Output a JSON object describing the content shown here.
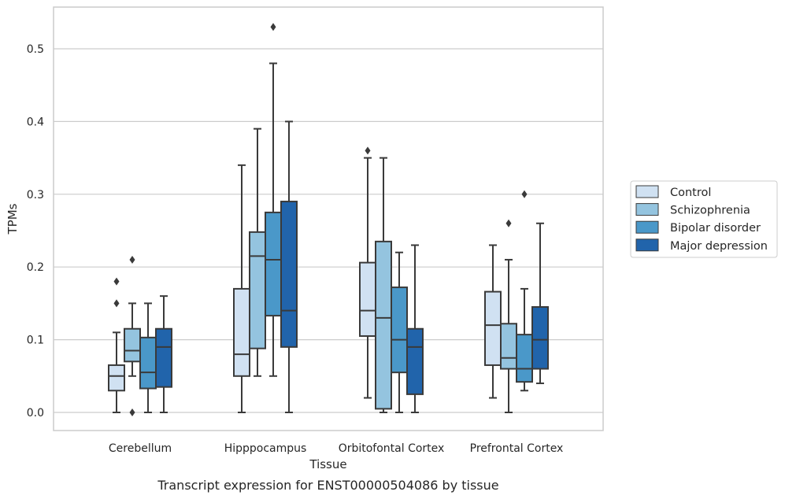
{
  "chart_data": {
    "type": "boxplot",
    "title": "",
    "caption": "Transcript expression for ENST00000504086 by tissue",
    "xlabel": "Tissue",
    "ylabel": "TPMs",
    "ylim": [
      -0.025,
      0.56
    ],
    "yticks": [
      0.0,
      0.1,
      0.2,
      0.3,
      0.4,
      0.5
    ],
    "ytick_labels": [
      "0.0",
      "0.1",
      "0.2",
      "0.3",
      "0.4",
      "0.5"
    ],
    "grid": "horizontal",
    "legend_position": "right",
    "categories": [
      "Cerebellum",
      "Hipppocampus",
      "Orbitofontal Cortex",
      "Prefrontal Cortex"
    ],
    "series": [
      {
        "name": "Control",
        "color": "#d0e1f2",
        "boxes": [
          {
            "whisker_low": 0.0,
            "q1": 0.03,
            "median": 0.05,
            "q3": 0.065,
            "whisker_high": 0.11,
            "outliers": [
              0.15,
              0.18
            ]
          },
          {
            "whisker_low": 0.0,
            "q1": 0.05,
            "median": 0.08,
            "q3": 0.17,
            "whisker_high": 0.34,
            "outliers": []
          },
          {
            "whisker_low": 0.02,
            "q1": 0.105,
            "median": 0.14,
            "q3": 0.206,
            "whisker_high": 0.35,
            "outliers": [
              0.36
            ]
          },
          {
            "whisker_low": 0.02,
            "q1": 0.065,
            "median": 0.12,
            "q3": 0.166,
            "whisker_high": 0.23,
            "outliers": []
          }
        ]
      },
      {
        "name": "Schizophrenia",
        "color": "#94c4df",
        "boxes": [
          {
            "whisker_low": 0.05,
            "q1": 0.07,
            "median": 0.085,
            "q3": 0.115,
            "whisker_high": 0.15,
            "outliers": [
              0.0,
              0.21
            ]
          },
          {
            "whisker_low": 0.05,
            "q1": 0.088,
            "median": 0.215,
            "q3": 0.248,
            "whisker_high": 0.39,
            "outliers": []
          },
          {
            "whisker_low": 0.0,
            "q1": 0.005,
            "median": 0.13,
            "q3": 0.235,
            "whisker_high": 0.35,
            "outliers": []
          },
          {
            "whisker_low": 0.0,
            "q1": 0.06,
            "median": 0.075,
            "q3": 0.122,
            "whisker_high": 0.21,
            "outliers": [
              0.26
            ]
          }
        ]
      },
      {
        "name": "Bipolar disorder",
        "color": "#4a98c9",
        "boxes": [
          {
            "whisker_low": 0.0,
            "q1": 0.033,
            "median": 0.055,
            "q3": 0.103,
            "whisker_high": 0.15,
            "outliers": []
          },
          {
            "whisker_low": 0.05,
            "q1": 0.133,
            "median": 0.21,
            "q3": 0.275,
            "whisker_high": 0.48,
            "outliers": [
              0.53
            ]
          },
          {
            "whisker_low": 0.0,
            "q1": 0.055,
            "median": 0.1,
            "q3": 0.172,
            "whisker_high": 0.22,
            "outliers": []
          },
          {
            "whisker_low": 0.03,
            "q1": 0.042,
            "median": 0.06,
            "q3": 0.107,
            "whisker_high": 0.17,
            "outliers": [
              0.3
            ]
          }
        ]
      },
      {
        "name": "Major depression",
        "color": "#2164ab",
        "boxes": [
          {
            "whisker_low": 0.0,
            "q1": 0.035,
            "median": 0.09,
            "q3": 0.115,
            "whisker_high": 0.16,
            "outliers": []
          },
          {
            "whisker_low": 0.0,
            "q1": 0.09,
            "median": 0.14,
            "q3": 0.29,
            "whisker_high": 0.4,
            "outliers": []
          },
          {
            "whisker_low": 0.0,
            "q1": 0.025,
            "median": 0.09,
            "q3": 0.115,
            "whisker_high": 0.23,
            "outliers": []
          },
          {
            "whisker_low": 0.04,
            "q1": 0.06,
            "median": 0.1,
            "q3": 0.145,
            "whisker_high": 0.26,
            "outliers": []
          }
        ]
      }
    ]
  }
}
